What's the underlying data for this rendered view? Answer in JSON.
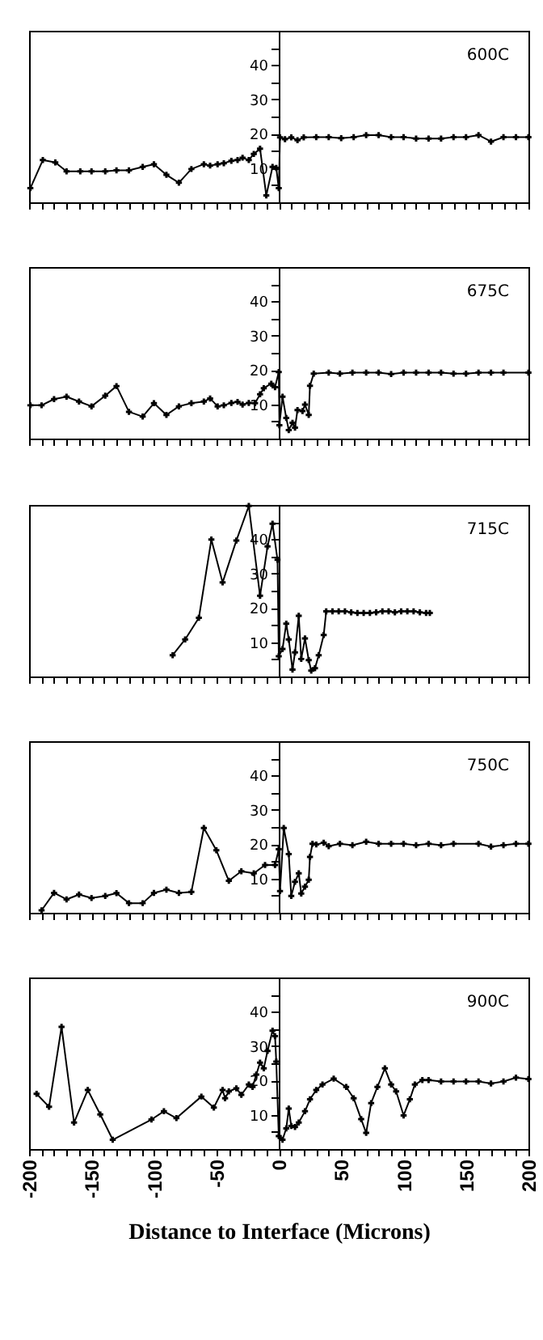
{
  "chart_data": [
    {
      "type": "line",
      "color": "#000000",
      "marker": "cross",
      "tick_labels": "y",
      "annotations": [
        "600C"
      ],
      "xlim": [
        -200,
        200
      ],
      "ylim": [
        0,
        50
      ],
      "xticks": [
        -200,
        {
          "value": -190,
          "label": null
        },
        {
          "value": -180,
          "label": null
        },
        {
          "value": -170,
          "label": null
        },
        {
          "value": -160,
          "label": null
        },
        -150,
        {
          "value": -140,
          "label": null
        },
        {
          "value": -130,
          "label": null
        },
        {
          "value": -120,
          "label": null
        },
        {
          "value": -110,
          "label": null
        },
        -100,
        {
          "value": -90,
          "label": null
        },
        {
          "value": -80,
          "label": null
        },
        {
          "value": -70,
          "label": null
        },
        {
          "value": -60,
          "label": null
        },
        -50,
        {
          "value": -40,
          "label": null
        },
        {
          "value": -30,
          "label": null
        },
        {
          "value": -20,
          "label": null
        },
        {
          "value": -10,
          "label": null
        },
        0,
        {
          "value": 10,
          "label": null
        },
        {
          "value": 20,
          "label": null
        },
        {
          "value": 30,
          "label": null
        },
        {
          "value": 40,
          "label": null
        },
        50,
        {
          "value": 60,
          "label": null
        },
        {
          "value": 70,
          "label": null
        },
        {
          "value": 80,
          "label": null
        },
        {
          "value": 90,
          "label": null
        },
        100,
        {
          "value": 110,
          "label": null
        },
        {
          "value": 120,
          "label": null
        },
        {
          "value": 130,
          "label": null
        },
        {
          "value": 140,
          "label": null
        },
        150,
        {
          "value": 160,
          "label": null
        },
        {
          "value": 170,
          "label": null
        },
        {
          "value": 180,
          "label": null
        },
        {
          "value": 190,
          "label": null
        },
        200
      ],
      "yticks": [
        {
          "value": 5,
          "label": null
        },
        10,
        {
          "value": 15,
          "label": null
        },
        20,
        {
          "value": 25,
          "label": null
        },
        30,
        {
          "value": 35,
          "label": null
        },
        40,
        {
          "value": 45,
          "label": null
        }
      ],
      "x": [
        -199,
        -189,
        -179,
        -170,
        -159,
        -150,
        -139,
        -130,
        -120,
        -109,
        -100,
        -90,
        -80,
        -70,
        -60,
        -55,
        -49,
        -44,
        -38,
        -33,
        -29,
        -24,
        -20,
        -15,
        -10,
        -5,
        -2,
        0,
        1,
        5,
        10,
        15,
        20,
        30,
        40,
        50,
        60,
        70,
        80,
        90,
        100,
        110,
        120,
        130,
        140,
        150,
        160,
        170,
        180,
        190,
        200
      ],
      "values": [
        4.1,
        12.3,
        11.6,
        9,
        9,
        9,
        9,
        9.3,
        9.3,
        10.3,
        11.1,
        8,
        5.7,
        9.7,
        11.1,
        10.7,
        11.1,
        11.4,
        12.1,
        12.3,
        13,
        12.3,
        14.1,
        15.6,
        2,
        10.3,
        10,
        4.1,
        18.9,
        18.4,
        18.9,
        18.1,
        18.9,
        19,
        19,
        18.7,
        19,
        19.6,
        19.6,
        19,
        19,
        18.6,
        18.6,
        18.6,
        19,
        19,
        19.6,
        17.7,
        19,
        19,
        19
      ]
    },
    {
      "type": "line",
      "color": "#000000",
      "marker": "cross",
      "tick_labels": "y",
      "annotations": [
        "675C"
      ],
      "xlim": [
        -200,
        200
      ],
      "ylim": [
        0,
        50
      ],
      "xticks": [
        -200,
        {
          "value": -190,
          "label": null
        },
        {
          "value": -180,
          "label": null
        },
        {
          "value": -170,
          "label": null
        },
        {
          "value": -160,
          "label": null
        },
        -150,
        {
          "value": -140,
          "label": null
        },
        {
          "value": -130,
          "label": null
        },
        {
          "value": -120,
          "label": null
        },
        {
          "value": -110,
          "label": null
        },
        -100,
        {
          "value": -90,
          "label": null
        },
        {
          "value": -80,
          "label": null
        },
        {
          "value": -70,
          "label": null
        },
        {
          "value": -60,
          "label": null
        },
        -50,
        {
          "value": -40,
          "label": null
        },
        {
          "value": -30,
          "label": null
        },
        {
          "value": -20,
          "label": null
        },
        {
          "value": -10,
          "label": null
        },
        0,
        {
          "value": 10,
          "label": null
        },
        {
          "value": 20,
          "label": null
        },
        {
          "value": 30,
          "label": null
        },
        {
          "value": 40,
          "label": null
        },
        50,
        {
          "value": 60,
          "label": null
        },
        {
          "value": 70,
          "label": null
        },
        {
          "value": 80,
          "label": null
        },
        {
          "value": 90,
          "label": null
        },
        100,
        {
          "value": 110,
          "label": null
        },
        {
          "value": 120,
          "label": null
        },
        {
          "value": 130,
          "label": null
        },
        {
          "value": 140,
          "label": null
        },
        150,
        {
          "value": 160,
          "label": null
        },
        {
          "value": 170,
          "label": null
        },
        {
          "value": 180,
          "label": null
        },
        {
          "value": 190,
          "label": null
        },
        200
      ],
      "yticks": [
        {
          "value": 5,
          "label": null
        },
        10,
        {
          "value": 15,
          "label": null
        },
        20,
        {
          "value": 25,
          "label": null
        },
        30,
        {
          "value": 35,
          "label": null
        },
        40,
        {
          "value": 45,
          "label": null
        }
      ],
      "x": [
        -199,
        -190,
        -180,
        -170,
        -160,
        -150,
        -139,
        -130,
        -120,
        -109,
        -100,
        -90,
        -80,
        -70,
        -60,
        -55,
        -49,
        -44,
        -38,
        -33,
        -29,
        -24,
        -19,
        -15,
        -12,
        -6,
        -3,
        0,
        0.5,
        3,
        6,
        8,
        11,
        13,
        15,
        19,
        21,
        24,
        25,
        28,
        40,
        49,
        59,
        70,
        80,
        90,
        100,
        110,
        120,
        130,
        140,
        150,
        160,
        170,
        180,
        200
      ],
      "values": [
        9.7,
        9.7,
        11.5,
        12.2,
        10.8,
        9.4,
        12.5,
        15.3,
        7.8,
        6.4,
        10.3,
        6.9,
        9.4,
        10.3,
        10.8,
        11.7,
        9.4,
        9.7,
        10.4,
        10.7,
        9.9,
        10.4,
        10.3,
        12.9,
        14.7,
        16,
        15,
        19.4,
        3.9,
        12.2,
        6,
        2.5,
        4.6,
        3.2,
        8.3,
        8,
        9.9,
        6.9,
        15.4,
        18.9,
        19.2,
        18.9,
        19.2,
        19.2,
        19.2,
        18.8,
        19.2,
        19.2,
        19.2,
        19.2,
        18.9,
        18.9,
        19.2,
        19.2,
        19.2,
        19.2
      ]
    },
    {
      "type": "line",
      "color": "#000000",
      "marker": "cross",
      "tick_labels": "y",
      "annotations": [
        "715C"
      ],
      "xlim": [
        -200,
        200
      ],
      "ylim": [
        0,
        50
      ],
      "xticks": [
        -200,
        {
          "value": -190,
          "label": null
        },
        {
          "value": -180,
          "label": null
        },
        {
          "value": -170,
          "label": null
        },
        {
          "value": -160,
          "label": null
        },
        -150,
        {
          "value": -140,
          "label": null
        },
        {
          "value": -130,
          "label": null
        },
        {
          "value": -120,
          "label": null
        },
        {
          "value": -110,
          "label": null
        },
        -100,
        {
          "value": -90,
          "label": null
        },
        {
          "value": -80,
          "label": null
        },
        {
          "value": -70,
          "label": null
        },
        {
          "value": -60,
          "label": null
        },
        -50,
        {
          "value": -40,
          "label": null
        },
        {
          "value": -30,
          "label": null
        },
        {
          "value": -20,
          "label": null
        },
        {
          "value": -10,
          "label": null
        },
        0,
        {
          "value": 10,
          "label": null
        },
        {
          "value": 20,
          "label": null
        },
        {
          "value": 30,
          "label": null
        },
        {
          "value": 40,
          "label": null
        },
        50,
        {
          "value": 60,
          "label": null
        },
        {
          "value": 70,
          "label": null
        },
        {
          "value": 80,
          "label": null
        },
        {
          "value": 90,
          "label": null
        },
        100,
        {
          "value": 110,
          "label": null
        },
        {
          "value": 120,
          "label": null
        },
        {
          "value": 130,
          "label": null
        },
        {
          "value": 140,
          "label": null
        },
        150,
        {
          "value": 160,
          "label": null
        },
        {
          "value": 170,
          "label": null
        },
        {
          "value": 180,
          "label": null
        },
        {
          "value": 190,
          "label": null
        },
        200
      ],
      "yticks": [
        {
          "value": 5,
          "label": null
        },
        10,
        {
          "value": 15,
          "label": null
        },
        20,
        {
          "value": 25,
          "label": null
        },
        30,
        {
          "value": 35,
          "label": null
        },
        40,
        {
          "value": 45,
          "label": null
        }
      ],
      "x": [
        -85,
        -75,
        -64,
        -54,
        -45,
        -34,
        -24,
        -15,
        -9,
        -5,
        -1,
        0,
        3,
        6,
        8,
        11,
        13,
        16,
        18,
        21,
        24,
        26,
        29,
        32,
        36,
        38,
        43,
        48,
        53,
        58,
        63,
        68,
        73,
        78,
        83,
        88,
        93,
        98,
        103,
        108,
        113,
        118,
        121
      ],
      "values": [
        6.2,
        10.8,
        17.1,
        39.9,
        27.4,
        39.6,
        49.7,
        23.5,
        37.9,
        44.5,
        34,
        5.9,
        8,
        15.4,
        10.8,
        2,
        7,
        17.7,
        5.1,
        11.1,
        4.8,
        1.7,
        2.4,
        6.2,
        12.1,
        19,
        19,
        19,
        19,
        18.7,
        18.5,
        18.5,
        18.5,
        18.7,
        19,
        19,
        18.7,
        19,
        19,
        19,
        18.7,
        18.5,
        18.5
      ]
    },
    {
      "type": "line",
      "color": "#000000",
      "marker": "cross",
      "tick_labels": "y",
      "annotations": [
        "750C"
      ],
      "xlim": [
        -200,
        200
      ],
      "ylim": [
        0,
        50
      ],
      "xticks": [
        -200,
        {
          "value": -190,
          "label": null
        },
        {
          "value": -180,
          "label": null
        },
        {
          "value": -170,
          "label": null
        },
        {
          "value": -160,
          "label": null
        },
        -150,
        {
          "value": -140,
          "label": null
        },
        {
          "value": -130,
          "label": null
        },
        {
          "value": -120,
          "label": null
        },
        {
          "value": -110,
          "label": null
        },
        -100,
        {
          "value": -90,
          "label": null
        },
        {
          "value": -80,
          "label": null
        },
        {
          "value": -70,
          "label": null
        },
        {
          "value": -60,
          "label": null
        },
        -50,
        {
          "value": -40,
          "label": null
        },
        {
          "value": -30,
          "label": null
        },
        {
          "value": -20,
          "label": null
        },
        {
          "value": -10,
          "label": null
        },
        0,
        {
          "value": 10,
          "label": null
        },
        {
          "value": 20,
          "label": null
        },
        {
          "value": 30,
          "label": null
        },
        {
          "value": 40,
          "label": null
        },
        50,
        {
          "value": 60,
          "label": null
        },
        {
          "value": 70,
          "label": null
        },
        {
          "value": 80,
          "label": null
        },
        {
          "value": 90,
          "label": null
        },
        100,
        {
          "value": 110,
          "label": null
        },
        {
          "value": 120,
          "label": null
        },
        {
          "value": 130,
          "label": null
        },
        {
          "value": 140,
          "label": null
        },
        150,
        {
          "value": 160,
          "label": null
        },
        {
          "value": 170,
          "label": null
        },
        {
          "value": 180,
          "label": null
        },
        {
          "value": 190,
          "label": null
        },
        200
      ],
      "yticks": [
        {
          "value": 5,
          "label": null
        },
        10,
        {
          "value": 15,
          "label": null
        },
        20,
        {
          "value": 25,
          "label": null
        },
        30,
        {
          "value": 35,
          "label": null
        },
        40,
        {
          "value": 45,
          "label": null
        }
      ],
      "x": [
        -190,
        -180,
        -170,
        -160,
        -150,
        -139,
        -130,
        -120,
        -109,
        -100,
        -90,
        -80,
        -70,
        -60,
        -50,
        -40,
        -30,
        -20,
        -11,
        -3,
        0,
        1,
        4,
        8,
        10,
        13,
        16,
        18,
        21,
        24,
        25,
        27,
        30,
        36,
        40,
        49,
        59,
        70,
        80,
        90,
        100,
        110,
        120,
        130,
        140,
        160,
        170,
        180,
        190,
        200
      ],
      "values": [
        0.7,
        5.8,
        3.9,
        5.3,
        4.3,
        4.9,
        5.7,
        2.8,
        2.8,
        5.8,
        6.7,
        5.8,
        6.1,
        24.7,
        18.2,
        9.3,
        12.1,
        11.5,
        13.9,
        13.9,
        18.5,
        6.3,
        24.7,
        17.1,
        4.9,
        9,
        11.5,
        5.6,
        7.6,
        9.6,
        16.3,
        20.1,
        19.9,
        20.4,
        19.4,
        20.1,
        19.7,
        20.7,
        20.1,
        20.1,
        20.1,
        19.7,
        20.1,
        19.7,
        20.1,
        20.1,
        19.3,
        19.7,
        20.1,
        20.1
      ]
    },
    {
      "type": "line",
      "color": "#000000",
      "marker": "cross",
      "annotations": [
        "900C"
      ],
      "xlabel": "Distance to Interface (Microns)",
      "xlim": [
        -200,
        200
      ],
      "ylim": [
        0,
        50
      ],
      "xticks": [
        -200,
        {
          "value": -190,
          "label": null
        },
        {
          "value": -180,
          "label": null
        },
        {
          "value": -170,
          "label": null
        },
        {
          "value": -160,
          "label": null
        },
        -150,
        {
          "value": -140,
          "label": null
        },
        {
          "value": -130,
          "label": null
        },
        {
          "value": -120,
          "label": null
        },
        {
          "value": -110,
          "label": null
        },
        -100,
        {
          "value": -90,
          "label": null
        },
        {
          "value": -80,
          "label": null
        },
        {
          "value": -70,
          "label": null
        },
        {
          "value": -60,
          "label": null
        },
        -50,
        {
          "value": -40,
          "label": null
        },
        {
          "value": -30,
          "label": null
        },
        {
          "value": -20,
          "label": null
        },
        {
          "value": -10,
          "label": null
        },
        0,
        {
          "value": 10,
          "label": null
        },
        {
          "value": 20,
          "label": null
        },
        {
          "value": 30,
          "label": null
        },
        {
          "value": 40,
          "label": null
        },
        50,
        {
          "value": 60,
          "label": null
        },
        {
          "value": 70,
          "label": null
        },
        {
          "value": 80,
          "label": null
        },
        {
          "value": 90,
          "label": null
        },
        100,
        {
          "value": 110,
          "label": null
        },
        {
          "value": 120,
          "label": null
        },
        {
          "value": 130,
          "label": null
        },
        {
          "value": 140,
          "label": null
        },
        150,
        {
          "value": 160,
          "label": null
        },
        {
          "value": 170,
          "label": null
        },
        {
          "value": 180,
          "label": null
        },
        {
          "value": 190,
          "label": null
        },
        200
      ],
      "yticks": [
        {
          "value": 5,
          "label": null
        },
        10,
        {
          "value": 15,
          "label": null
        },
        20,
        {
          "value": 25,
          "label": null
        },
        30,
        {
          "value": 35,
          "label": null
        },
        40,
        {
          "value": 45,
          "label": null
        }
      ],
      "x": [
        -194,
        -184,
        -174,
        -164,
        -153,
        -143,
        -133,
        -102,
        -92,
        -82,
        -62,
        -52,
        -45,
        -43,
        -40,
        -34,
        -30,
        -24,
        -21,
        -18,
        -15,
        -12,
        -9,
        -5,
        -3,
        -2,
        0,
        3,
        6,
        8,
        10,
        13,
        16,
        21,
        25,
        30,
        35,
        44,
        54,
        60,
        66,
        70,
        74,
        79,
        85,
        90,
        94,
        100,
        105,
        109,
        115,
        120,
        130,
        140,
        150,
        160,
        170,
        180,
        190,
        200
      ],
      "values": [
        16.1,
        12.3,
        35.6,
        7.7,
        17.2,
        10.1,
        2.7,
        8.6,
        11,
        9,
        15.3,
        12.1,
        17.2,
        14.8,
        16.8,
        17.7,
        15.8,
        18.8,
        18.1,
        21.7,
        25.2,
        23.5,
        28.6,
        34.5,
        32.9,
        25.5,
        3.8,
        2.7,
        6,
        11.8,
        6.7,
        6.4,
        7.7,
        11,
        14.5,
        17.2,
        18.8,
        20.5,
        18.1,
        14.8,
        8.7,
        4.7,
        13.4,
        18.1,
        23.5,
        18.8,
        16.8,
        9.8,
        14.5,
        18.8,
        20.1,
        20.1,
        19.7,
        19.7,
        19.7,
        19.7,
        19.1,
        19.7,
        20.8,
        20.4
      ]
    }
  ]
}
